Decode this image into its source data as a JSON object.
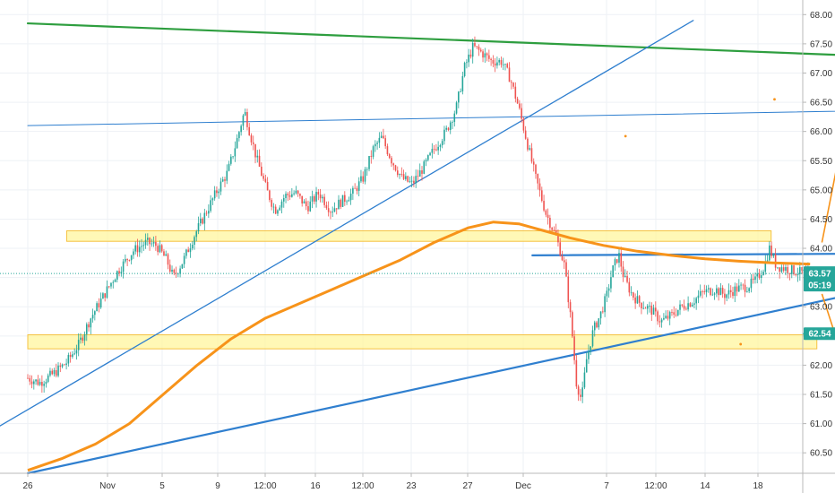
{
  "chart_data": {
    "type": "candlestick",
    "title": "",
    "xlabel": "",
    "ylabel": "",
    "ylim": [
      60.15,
      68.25
    ],
    "grid": true,
    "y_ticks": [
      "60.50",
      "61.00",
      "61.50",
      "62.00",
      "62.50",
      "63.00",
      "63.50",
      "64.00",
      "64.50",
      "65.00",
      "65.50",
      "66.00",
      "66.50",
      "67.00",
      "67.50",
      "68.00"
    ],
    "x_ticks": [
      "26",
      "Nov",
      "5",
      "9",
      "12:00",
      "16",
      "12:00",
      "23",
      "27",
      "Dec",
      "7",
      "12:00",
      "14",
      "18"
    ],
    "last_price": "63.57",
    "countdown": "05:19",
    "level_price": "62.54",
    "price_path": [
      [
        0,
        61.78
      ],
      [
        0.7,
        61.7
      ],
      [
        1.5,
        61.85
      ],
      [
        2.3,
        62.05
      ],
      [
        3.0,
        62.35
      ],
      [
        3.7,
        62.8
      ],
      [
        4.5,
        63.2
      ],
      [
        5.3,
        63.6
      ],
      [
        6.2,
        63.95
      ],
      [
        7.0,
        64.1
      ],
      [
        7.6,
        64.05
      ],
      [
        8.2,
        63.8
      ],
      [
        8.6,
        63.5
      ],
      [
        9.2,
        63.8
      ],
      [
        9.8,
        64.2
      ],
      [
        10.5,
        64.6
      ],
      [
        11.2,
        65.0
      ],
      [
        11.8,
        65.3
      ],
      [
        12.3,
        65.8
      ],
      [
        12.8,
        66.35
      ],
      [
        13.1,
        66.0
      ],
      [
        13.5,
        65.55
      ],
      [
        14.1,
        65.0
      ],
      [
        14.6,
        64.65
      ],
      [
        15.2,
        64.9
      ],
      [
        15.8,
        64.95
      ],
      [
        16.5,
        64.7
      ],
      [
        17.2,
        64.95
      ],
      [
        17.9,
        64.65
      ],
      [
        18.5,
        64.8
      ],
      [
        19.2,
        64.95
      ],
      [
        19.8,
        65.2
      ],
      [
        20.4,
        65.7
      ],
      [
        20.9,
        65.9
      ],
      [
        21.5,
        65.5
      ],
      [
        22.1,
        65.2
      ],
      [
        22.7,
        65.1
      ],
      [
        23.4,
        65.4
      ],
      [
        24.0,
        65.7
      ],
      [
        24.7,
        66.0
      ],
      [
        25.3,
        66.4
      ],
      [
        25.8,
        67.1
      ],
      [
        26.3,
        67.45
      ],
      [
        26.8,
        67.35
      ],
      [
        27.4,
        67.2
      ],
      [
        28.0,
        67.2
      ],
      [
        28.5,
        66.9
      ],
      [
        29.0,
        66.4
      ],
      [
        29.5,
        65.8
      ],
      [
        30.0,
        65.2
      ],
      [
        30.6,
        64.6
      ],
      [
        31.2,
        64.2
      ],
      [
        31.7,
        63.7
      ],
      [
        32.1,
        62.7
      ],
      [
        32.4,
        61.7
      ],
      [
        32.7,
        61.4
      ],
      [
        33.0,
        62.1
      ],
      [
        33.4,
        62.6
      ],
      [
        33.8,
        62.85
      ],
      [
        34.2,
        63.2
      ],
      [
        34.5,
        63.6
      ],
      [
        34.9,
        63.9
      ],
      [
        35.2,
        63.5
      ],
      [
        35.7,
        63.2
      ],
      [
        36.2,
        63.05
      ],
      [
        36.8,
        62.95
      ],
      [
        37.4,
        62.75
      ],
      [
        38.0,
        62.85
      ],
      [
        38.6,
        63.0
      ],
      [
        39.3,
        63.1
      ],
      [
        39.9,
        63.25
      ],
      [
        40.6,
        63.3
      ],
      [
        41.2,
        63.2
      ],
      [
        41.8,
        63.3
      ],
      [
        42.5,
        63.35
      ],
      [
        43.0,
        63.45
      ],
      [
        43.5,
        63.7
      ],
      [
        43.8,
        64.0
      ],
      [
        44.2,
        63.7
      ],
      [
        44.8,
        63.65
      ],
      [
        45.4,
        63.6
      ],
      [
        45.8,
        63.58
      ],
      [
        46.2,
        63.57
      ]
    ],
    "ma_curve": [
      [
        0,
        60.2
      ],
      [
        2,
        60.4
      ],
      [
        4,
        60.65
      ],
      [
        6,
        61.0
      ],
      [
        8,
        61.5
      ],
      [
        10,
        62.0
      ],
      [
        12,
        62.45
      ],
      [
        14,
        62.8
      ],
      [
        16,
        63.05
      ],
      [
        18,
        63.3
      ],
      [
        20,
        63.55
      ],
      [
        22,
        63.8
      ],
      [
        24,
        64.1
      ],
      [
        26,
        64.35
      ],
      [
        27.5,
        64.45
      ],
      [
        29,
        64.42
      ],
      [
        30.5,
        64.3
      ],
      [
        32,
        64.18
      ],
      [
        34,
        64.05
      ],
      [
        36,
        63.95
      ],
      [
        38,
        63.88
      ],
      [
        40,
        63.82
      ],
      [
        42,
        63.78
      ],
      [
        44,
        63.75
      ],
      [
        46.2,
        63.73
      ]
    ],
    "trend_lines": [
      {
        "color": "#2e9e3f",
        "width": 2.2,
        "points": [
          [
            0,
            67.85
          ],
          [
            62,
            67.15
          ]
        ]
      },
      {
        "color": "#2f7fcf",
        "width": 1.3,
        "points": [
          [
            -2,
            60.9
          ],
          [
            39.3,
            67.9
          ]
        ]
      },
      {
        "color": "#2f7fcf",
        "width": 1,
        "points": [
          [
            0,
            66.1
          ],
          [
            62,
            66.42
          ]
        ]
      },
      {
        "color": "#2f7fcf",
        "width": 2.2,
        "points": [
          [
            0,
            60.15
          ],
          [
            62,
            64.05
          ]
        ]
      },
      {
        "color": "#2f7fcf",
        "width": 2.2,
        "points": [
          [
            29.8,
            63.88
          ],
          [
            58,
            63.92
          ]
        ]
      }
    ],
    "zones": [
      {
        "x0": 2.3,
        "x1": 43.9,
        "y0": 64.12,
        "y1": 64.3
      },
      {
        "x0": 0,
        "x1": 46.6,
        "y0": 62.28,
        "y1": 62.52
      }
    ],
    "arrows": [
      {
        "from": [
          46.9,
          64.1
        ],
        "to": [
          48.7,
          66.75
        ]
      },
      {
        "from": [
          46.9,
          63.22
        ],
        "to": [
          49.5,
          60.9
        ]
      }
    ],
    "dots": [
      [
        35.3,
        65.92
      ],
      [
        44.1,
        66.55
      ],
      [
        42.1,
        62.36
      ]
    ],
    "colors": {
      "up": "#26a69a",
      "down": "#ef5350",
      "ma": "#f7931a",
      "zone_fill": "#fff59d",
      "zone_stroke": "#f5c242",
      "last_price_badge": "#26a69a",
      "level_badge": "#26a69a"
    }
  }
}
